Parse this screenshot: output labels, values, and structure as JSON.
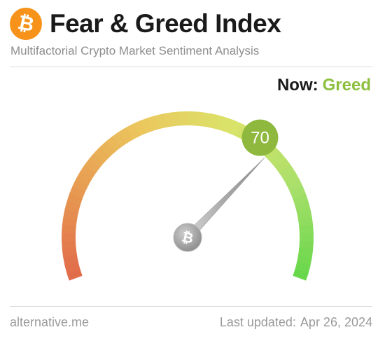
{
  "header": {
    "logo_glyph": "₿",
    "logo_icon": "bitcoin-icon",
    "title": "Fear & Greed Index",
    "subtitle": "Multifactorial Crypto Market Sentiment Analysis"
  },
  "status": {
    "now_label": "Now:",
    "classification": "Greed",
    "classification_color": "#8dbf3f"
  },
  "gauge": {
    "value": 70,
    "value_text": "70",
    "min": 0,
    "max": 100,
    "badge_color": "#8fb83e",
    "center_glyph": "₿",
    "colors": [
      "#e16a4a",
      "#e79b52",
      "#ebc85d",
      "#d9e36a",
      "#a7df6a",
      "#66d74a"
    ]
  },
  "footer": {
    "source": "alternative.me",
    "updated_label": "Last updated:",
    "updated_date": "Apr 26, 2024"
  }
}
